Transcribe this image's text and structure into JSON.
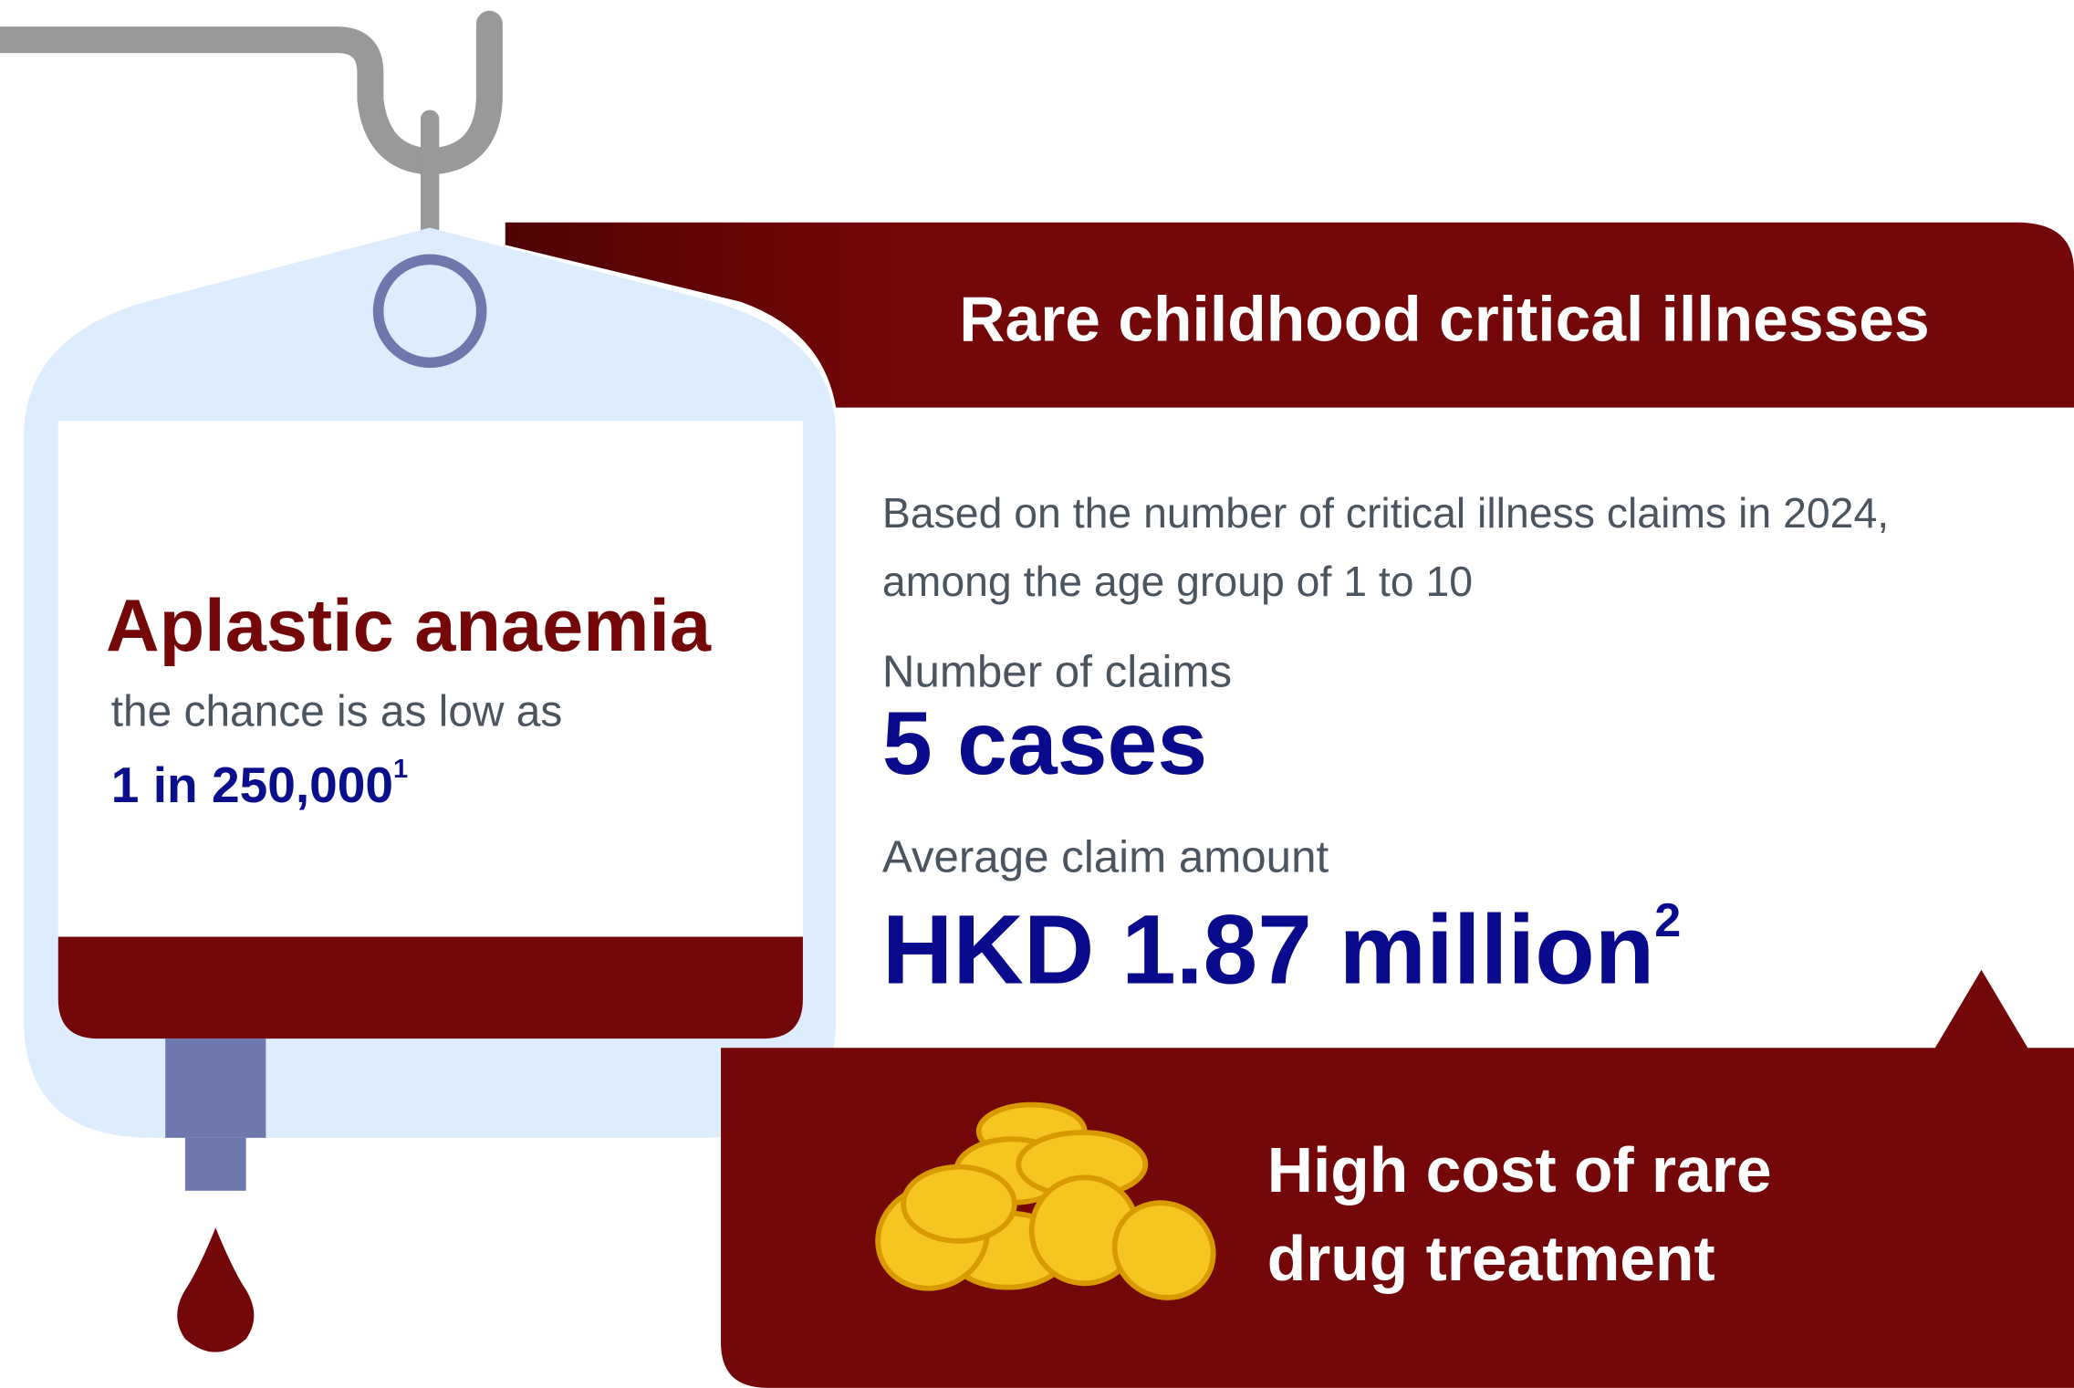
{
  "header": {
    "title": "Rare childhood critical illnesses"
  },
  "illness": {
    "name": "Aplastic anaemia",
    "chance_intro": "the chance is as low as",
    "chance": "1 in 250,000",
    "chance_note": "1"
  },
  "basis": {
    "lines": [
      "Based on the number of critical illness claims in 2024,",
      "among the age group of 1 to 10"
    ]
  },
  "claims": {
    "label": "Number of claims",
    "value": "5 cases"
  },
  "average": {
    "label": "Average claim amount",
    "value": "HKD 1.87 million",
    "note": "2"
  },
  "footer": {
    "lines": [
      "High cost of rare",
      "drug treatment"
    ]
  }
}
